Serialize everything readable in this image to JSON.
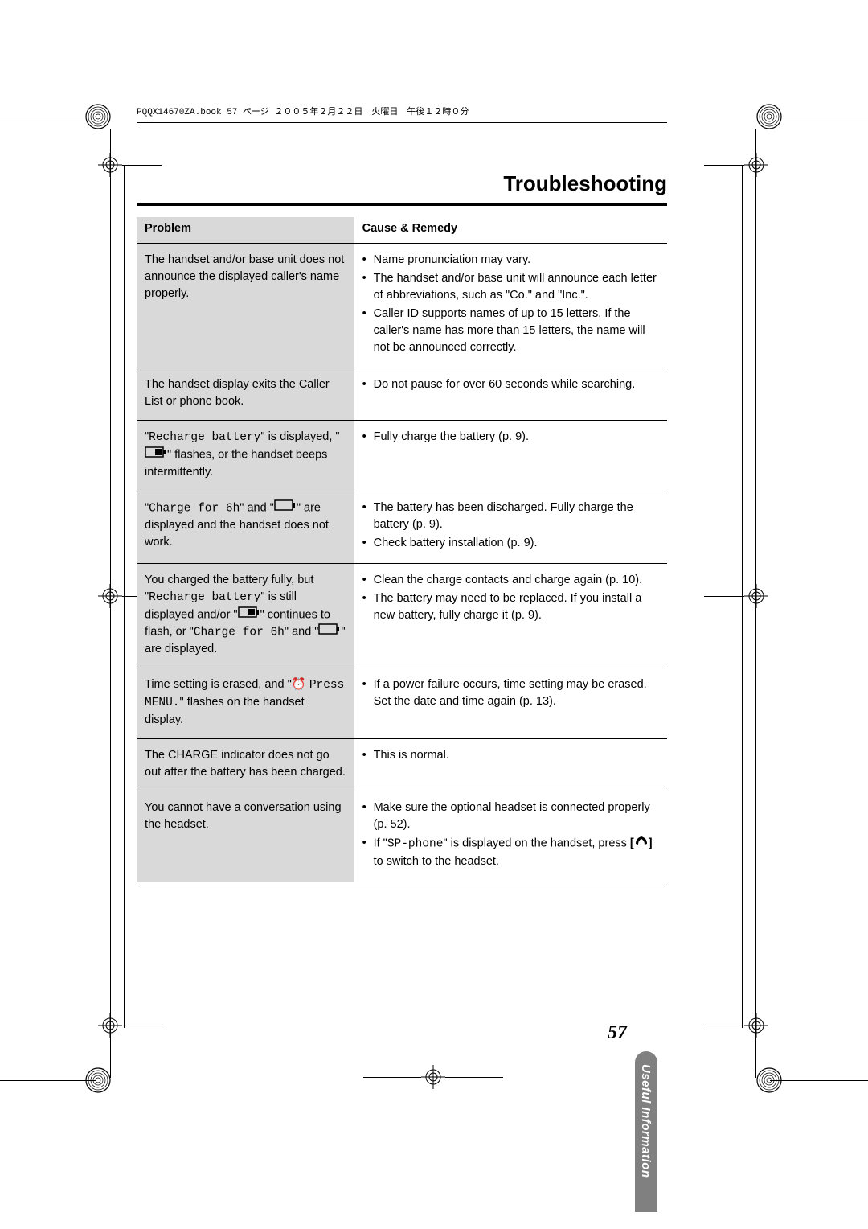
{
  "header": {
    "book_line": "PQQX14670ZA.book  57 ページ  ２００５年２月２２日　火曜日　午後１２時０分"
  },
  "title": "Troubleshooting",
  "table": {
    "columns": [
      "Problem",
      "Cause & Remedy"
    ],
    "rows": [
      {
        "problem_html": "The handset and/or base unit does not announce the displayed caller's name properly.",
        "remedies": [
          "Name pronunciation may vary.",
          "The handset and/or base unit will announce each letter of abbreviations, such as \"Co.\" and \"Inc.\".",
          "Caller ID supports names of up to 15 letters. If the caller's name has more than 15 letters, the name will not be announced correctly."
        ]
      },
      {
        "problem_html": "The handset display exits the Caller List or phone book.",
        "remedies": [
          "Do not pause for over 60 seconds while searching."
        ]
      },
      {
        "problem_html": "\"<span class='mono'>Recharge battery</span>\" is displayed, \"{BATT_FULL}\" flashes, or the handset beeps intermittently.",
        "remedies": [
          "Fully charge the battery (p. 9)."
        ]
      },
      {
        "problem_html": "\"<span class='mono'>Charge for 6h</span>\" and \"{BATT_EMPTY}\" are displayed and the handset does not work.",
        "remedies": [
          "The battery has been discharged. Fully charge the battery (p. 9).",
          "Check battery installation (p. 9)."
        ]
      },
      {
        "problem_html": "You charged the battery fully, but \"<span class='mono'>Recharge battery</span>\" is still displayed and/or \"{BATT_FULL}\" continues to flash, or \"<span class='mono'>Charge for 6h</span>\" and \"{BATT_EMPTY}\" are displayed.",
        "remedies": [
          "Clean the charge contacts and charge again (p. 10).",
          "The battery may need to be replaced. If you install a new battery, fully charge it (p. 9)."
        ]
      },
      {
        "problem_html": "Time setting is erased, and \"<span class='clock-icon'>&#9200;</span> <span class='mono'>Press MENU.</span>\" flashes on the handset display.",
        "remedies": [
          "If a power failure occurs, time setting may be erased. Set the date and time again (p. 13)."
        ]
      },
      {
        "problem_html": "The CHARGE indicator does not go out after the battery has been charged.",
        "remedies": [
          "This is normal."
        ]
      },
      {
        "problem_html": "You cannot have a conversation using the headset.",
        "remedies": [
          "Make sure the optional headset is connected properly (p. 52).",
          "If \"<span class='mono'>SP-phone</span>\" is displayed on the handset, press <b>[</b>{HANDSET}<b>]</b> to switch to the headset."
        ]
      }
    ]
  },
  "side_tab": "Useful Information",
  "page_number": "57",
  "icons": {
    "batt_full_svg": "<svg width='28' height='14' viewBox='0 0 28 14'><rect x='1' y='1' width='22' height='12' fill='none' stroke='#000' stroke-width='1.5'/><rect x='23' y='4' width='3' height='6' fill='#000'/><rect x='13' y='3' width='8' height='8' fill='#000'/></svg>",
    "batt_empty_svg": "<svg width='28' height='14' viewBox='0 0 28 14'><rect x='1' y='1' width='22' height='12' fill='none' stroke='#000' stroke-width='1.5'/><rect x='23' y='4' width='3' height='6' fill='#000'/></svg>",
    "handset_svg": "<svg width='18' height='14' viewBox='0 0 18 14'><path d='M2 11 Q2 4 9 2 Q16 4 16 11 L13 12 Q13 7 9 5 Q5 7 5 12 Z' fill='#000'/></svg>",
    "reg_svg": "<svg width='30' height='30' viewBox='0 0 30 30'><circle cx='15' cy='15' r='9' fill='none' stroke='#000' stroke-width='1'/><circle cx='15' cy='15' r='5' fill='none' stroke='#000' stroke-width='1'/><line x1='15' y1='0' x2='15' y2='30' stroke='#000' stroke-width='1'/><line x1='0' y1='15' x2='30' y2='15' stroke='#000' stroke-width='1'/></svg>",
    "corner_svg": "<svg width='34' height='34' viewBox='0 0 34 34'><circle cx='17' cy='17' r='15' fill='none' stroke='#000' stroke-width='1.2'/><g stroke='#000' stroke-width='0.7' fill='none'><circle cx='17' cy='17' r='12'/><circle cx='17' cy='17' r='9'/><circle cx='17' cy='17' r='6'/><circle cx='17' cy='17' r='3'/></g></svg>"
  },
  "colors": {
    "shade": "#d9d9d9",
    "tab": "#808080",
    "text": "#000000",
    "bg": "#ffffff"
  }
}
